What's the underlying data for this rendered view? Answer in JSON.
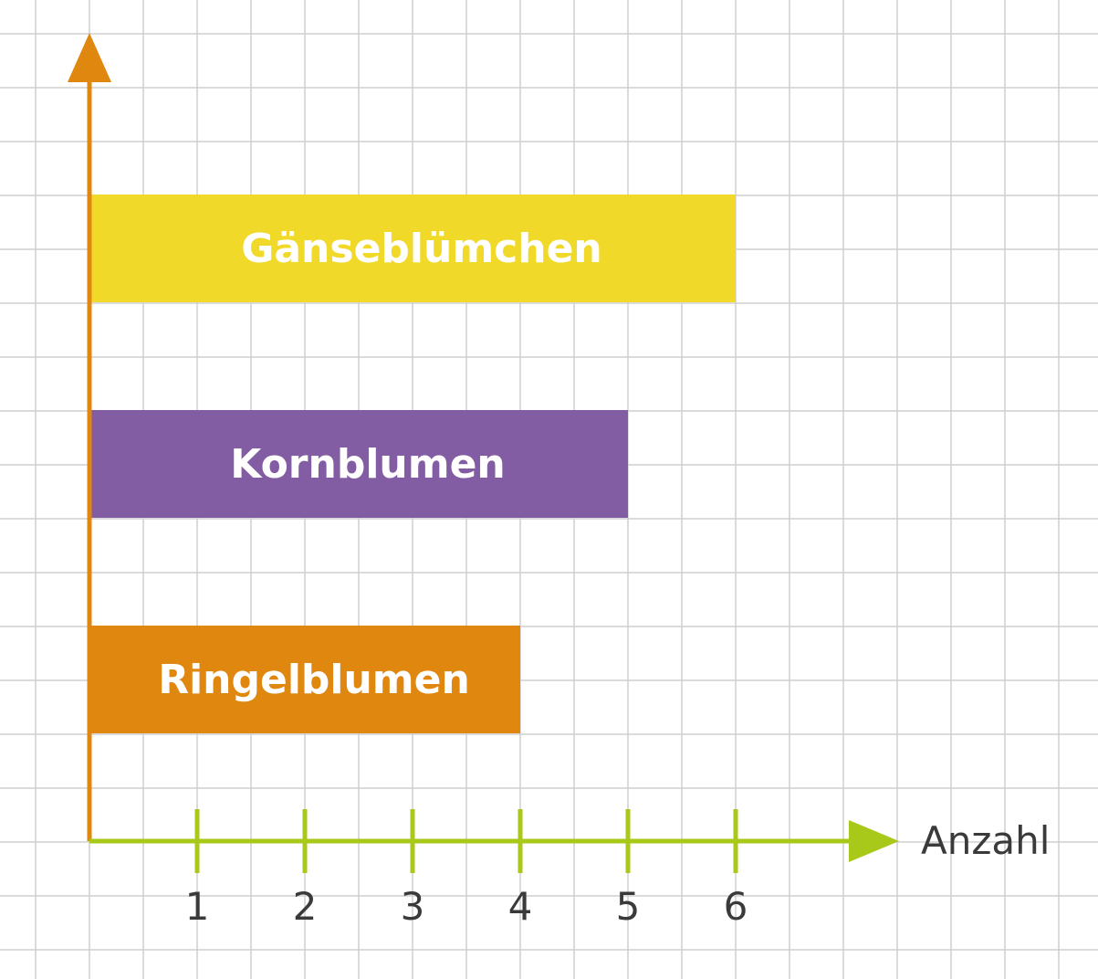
{
  "chart_data": {
    "type": "bar",
    "orientation": "horizontal",
    "categories": [
      "Gänseblümchen",
      "Kornblumen",
      "Ringelblumen"
    ],
    "values": [
      6,
      5,
      4
    ],
    "colors": [
      "#f1d92a",
      "#835da3",
      "#e0870f"
    ],
    "xlabel": "Anzahl",
    "ylabel": "",
    "xlim": [
      0,
      7
    ],
    "x_ticks": [
      "1",
      "2",
      "3",
      "4",
      "5",
      "6"
    ],
    "grid": true,
    "legend": "none"
  },
  "colors": {
    "grid": "#cfcfcf",
    "x_axis": "#a8c81a",
    "y_axis": "#e0870f",
    "label_text": "#3a3a3a"
  }
}
